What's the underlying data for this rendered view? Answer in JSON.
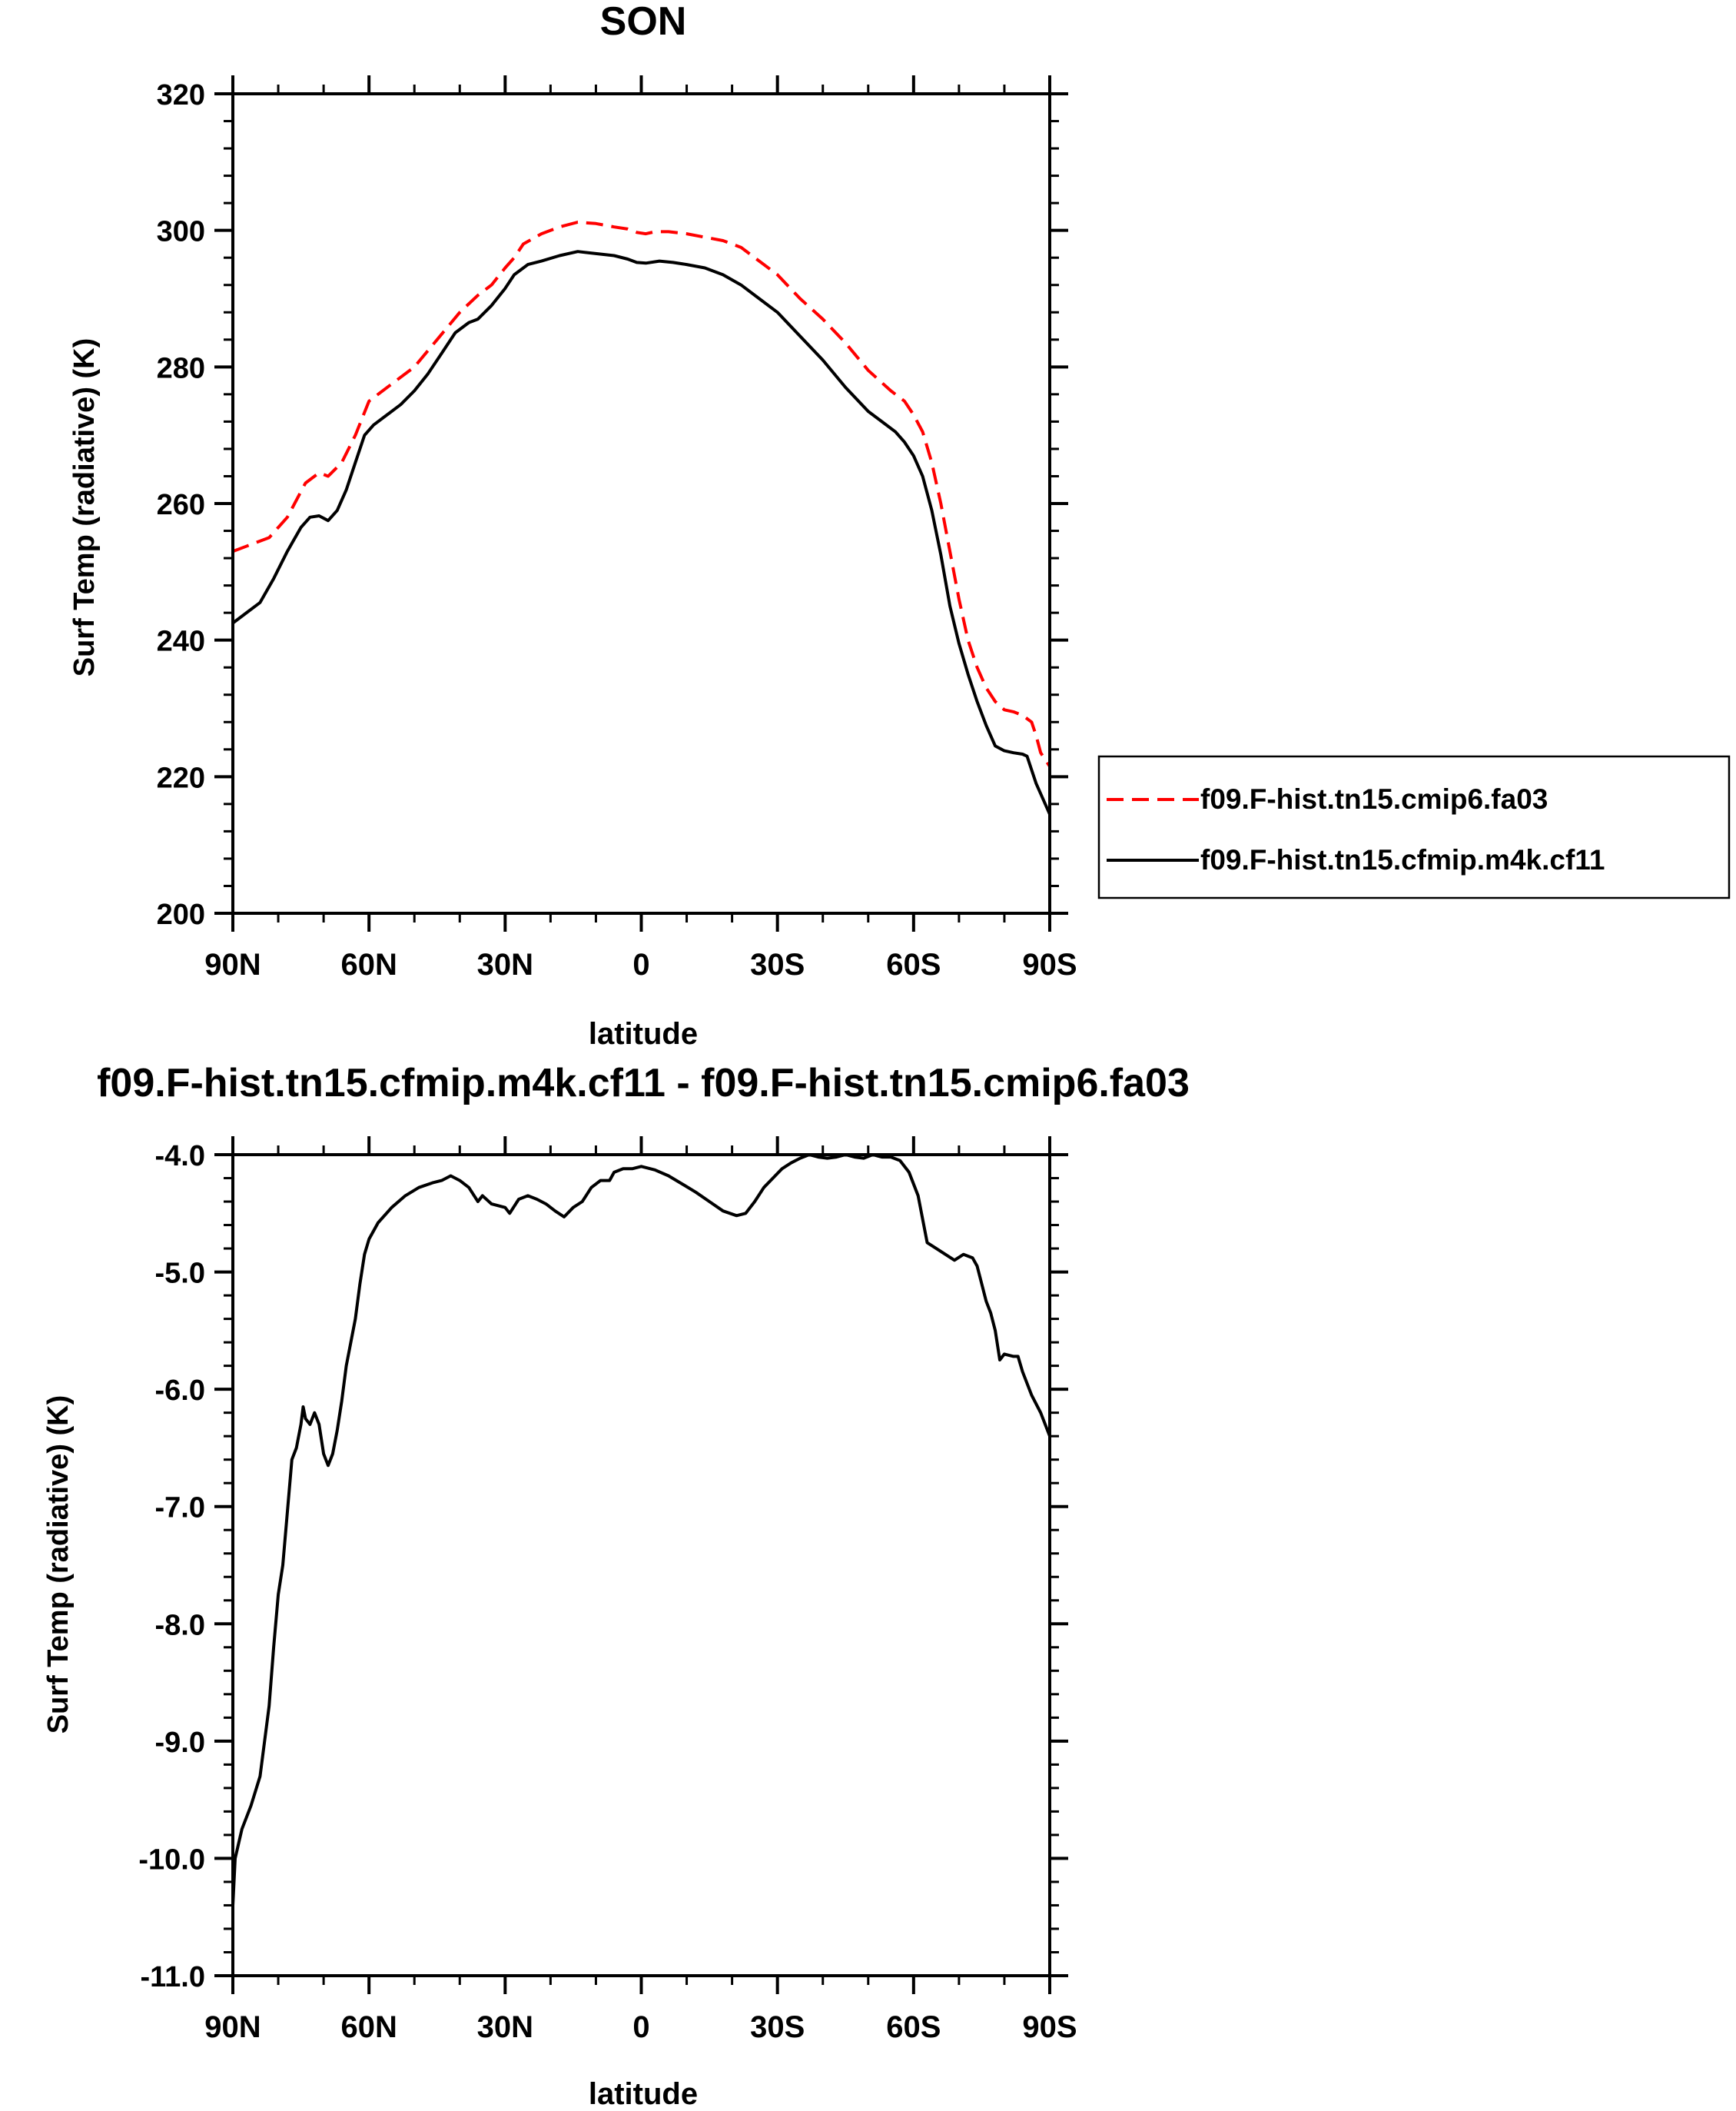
{
  "chart_data": [
    {
      "type": "line",
      "title": "SON",
      "xlabel": "latitude",
      "ylabel": "Surf Temp (radiative) (K)",
      "xlim": [
        90,
        -90
      ],
      "ylim": [
        200,
        320
      ],
      "x_ticks": [
        {
          "value": 90,
          "label": "90N"
        },
        {
          "value": 60,
          "label": "60N"
        },
        {
          "value": 30,
          "label": "30N"
        },
        {
          "value": 0,
          "label": "0"
        },
        {
          "value": -30,
          "label": "30S"
        },
        {
          "value": -60,
          "label": "60S"
        },
        {
          "value": -90,
          "label": "90S"
        }
      ],
      "y_ticks": [
        {
          "value": 200,
          "label": "200"
        },
        {
          "value": 220,
          "label": "220"
        },
        {
          "value": 240,
          "label": "240"
        },
        {
          "value": 260,
          "label": "260"
        },
        {
          "value": 280,
          "label": "280"
        },
        {
          "value": 300,
          "label": "300"
        },
        {
          "value": 320,
          "label": "320"
        }
      ],
      "legend_position": "right",
      "series": [
        {
          "name": "f09.F-hist.tn15.cmip6.fa03",
          "color": "#ff0000",
          "dash": "dashed",
          "points": [
            [
              90,
              253
            ],
            [
              86,
              254
            ],
            [
              82,
              255
            ],
            [
              78,
              258
            ],
            [
              74,
              263
            ],
            [
              71,
              264.5
            ],
            [
              69,
              264
            ],
            [
              66,
              266
            ],
            [
              63,
              270
            ],
            [
              60,
              275
            ],
            [
              55,
              277.5
            ],
            [
              50,
              280
            ],
            [
              45,
              284
            ],
            [
              40,
              288
            ],
            [
              36,
              290.5
            ],
            [
              33,
              292
            ],
            [
              30,
              294.5
            ],
            [
              28,
              296
            ],
            [
              26,
              298
            ],
            [
              22,
              299.5
            ],
            [
              18,
              300.5
            ],
            [
              14,
              301.2
            ],
            [
              10,
              301
            ],
            [
              6,
              300.5
            ],
            [
              3,
              300.2
            ],
            [
              1,
              299.7
            ],
            [
              -1,
              299.5
            ],
            [
              -3,
              299.8
            ],
            [
              -6,
              299.8
            ],
            [
              -10,
              299.5
            ],
            [
              -14,
              299
            ],
            [
              -18,
              298.5
            ],
            [
              -22,
              297.5
            ],
            [
              -26,
              295.5
            ],
            [
              -30,
              293.5
            ],
            [
              -35,
              290
            ],
            [
              -40,
              287
            ],
            [
              -45,
              283.5
            ],
            [
              -50,
              279.5
            ],
            [
              -55,
              276.5
            ],
            [
              -58,
              275
            ],
            [
              -60,
              273
            ],
            [
              -62,
              270.5
            ],
            [
              -64,
              266
            ],
            [
              -66,
              260
            ],
            [
              -68,
              253
            ],
            [
              -70,
              246
            ],
            [
              -72,
              240
            ],
            [
              -74,
              236
            ],
            [
              -76,
              233
            ],
            [
              -78,
              231
            ],
            [
              -80,
              229.8
            ],
            [
              -82,
              229.5
            ],
            [
              -84,
              229
            ],
            [
              -86,
              228
            ],
            [
              -87,
              226
            ],
            [
              -88,
              223.5
            ],
            [
              -90,
              221.5
            ]
          ]
        },
        {
          "name": "f09.F-hist.tn15.cfmip.m4k.cf11",
          "color": "#000000",
          "dash": "solid",
          "points": [
            [
              90,
              242.5
            ],
            [
              87,
              244
            ],
            [
              84,
              245.5
            ],
            [
              81,
              249
            ],
            [
              78,
              253
            ],
            [
              75,
              256.5
            ],
            [
              73,
              258
            ],
            [
              71,
              258.2
            ],
            [
              69,
              257.5
            ],
            [
              67,
              259
            ],
            [
              65,
              262
            ],
            [
              63,
              266
            ],
            [
              61,
              270
            ],
            [
              59,
              271.5
            ],
            [
              56,
              273
            ],
            [
              53,
              274.5
            ],
            [
              50,
              276.5
            ],
            [
              47,
              279
            ],
            [
              44,
              282
            ],
            [
              41,
              285
            ],
            [
              38,
              286.5
            ],
            [
              36,
              287
            ],
            [
              33,
              289
            ],
            [
              30,
              291.5
            ],
            [
              28,
              293.5
            ],
            [
              25,
              295
            ],
            [
              22,
              295.5
            ],
            [
              18,
              296.3
            ],
            [
              14,
              296.9
            ],
            [
              10,
              296.6
            ],
            [
              6,
              296.3
            ],
            [
              3,
              295.8
            ],
            [
              1,
              295.3
            ],
            [
              -1,
              295.2
            ],
            [
              -4,
              295.5
            ],
            [
              -7,
              295.3
            ],
            [
              -10,
              295
            ],
            [
              -14,
              294.5
            ],
            [
              -18,
              293.5
            ],
            [
              -22,
              292
            ],
            [
              -26,
              290
            ],
            [
              -30,
              288
            ],
            [
              -35,
              284.5
            ],
            [
              -40,
              281
            ],
            [
              -45,
              277
            ],
            [
              -50,
              273.5
            ],
            [
              -53,
              272
            ],
            [
              -56,
              270.5
            ],
            [
              -58,
              269
            ],
            [
              -60,
              267
            ],
            [
              -62,
              264
            ],
            [
              -64,
              259
            ],
            [
              -66,
              252.5
            ],
            [
              -68,
              245
            ],
            [
              -70,
              239.5
            ],
            [
              -72,
              235
            ],
            [
              -74,
              231
            ],
            [
              -76,
              227.5
            ],
            [
              -78,
              224.5
            ],
            [
              -80,
              223.8
            ],
            [
              -82,
              223.5
            ],
            [
              -84,
              223.3
            ],
            [
              -85,
              223
            ],
            [
              -86,
              221
            ],
            [
              -87,
              219
            ],
            [
              -88,
              217.5
            ],
            [
              -90,
              214.5
            ]
          ]
        }
      ]
    },
    {
      "type": "line",
      "title": "f09.F-hist.tn15.cfmip.m4k.cf11 - f09.F-hist.tn15.cmip6.fa03",
      "xlabel": "latitude",
      "ylabel": "Surf Temp (radiative) (K)",
      "xlim": [
        90,
        -90
      ],
      "ylim": [
        -11,
        -4
      ],
      "x_ticks": [
        {
          "value": 90,
          "label": "90N"
        },
        {
          "value": 60,
          "label": "60N"
        },
        {
          "value": 30,
          "label": "30N"
        },
        {
          "value": 0,
          "label": "0"
        },
        {
          "value": -30,
          "label": "30S"
        },
        {
          "value": -60,
          "label": "60S"
        },
        {
          "value": -90,
          "label": "90S"
        }
      ],
      "y_ticks": [
        {
          "value": -11,
          "label": "-11.0"
        },
        {
          "value": -10,
          "label": "-10.0"
        },
        {
          "value": -9,
          "label": "-9.0"
        },
        {
          "value": -8,
          "label": "-8.0"
        },
        {
          "value": -7,
          "label": "-7.0"
        },
        {
          "value": -6,
          "label": "-6.0"
        },
        {
          "value": -5,
          "label": "-5.0"
        },
        {
          "value": -4,
          "label": "-4.0"
        }
      ],
      "series": [
        {
          "color": "#000000",
          "dash": "solid",
          "points": [
            [
              90,
              -10.4
            ],
            [
              89.5,
              -10.0
            ],
            [
              88,
              -9.75
            ],
            [
              86,
              -9.55
            ],
            [
              84,
              -9.3
            ],
            [
              82,
              -8.7
            ],
            [
              81,
              -8.2
            ],
            [
              80,
              -7.75
            ],
            [
              79,
              -7.5
            ],
            [
              78,
              -7.05
            ],
            [
              77,
              -6.6
            ],
            [
              76,
              -6.5
            ],
            [
              75,
              -6.3
            ],
            [
              74.5,
              -6.15
            ],
            [
              74,
              -6.25
            ],
            [
              73,
              -6.3
            ],
            [
              72,
              -6.2
            ],
            [
              71,
              -6.3
            ],
            [
              70,
              -6.55
            ],
            [
              69,
              -6.65
            ],
            [
              68,
              -6.55
            ],
            [
              67,
              -6.35
            ],
            [
              66,
              -6.1
            ],
            [
              65,
              -5.8
            ],
            [
              64,
              -5.6
            ],
            [
              63,
              -5.4
            ],
            [
              62,
              -5.1
            ],
            [
              61,
              -4.85
            ],
            [
              60,
              -4.72
            ],
            [
              58,
              -4.58
            ],
            [
              55,
              -4.45
            ],
            [
              52,
              -4.35
            ],
            [
              49,
              -4.28
            ],
            [
              46,
              -4.24
            ],
            [
              44,
              -4.22
            ],
            [
              42,
              -4.18
            ],
            [
              40,
              -4.22
            ],
            [
              38,
              -4.28
            ],
            [
              36,
              -4.4
            ],
            [
              35,
              -4.35
            ],
            [
              33,
              -4.42
            ],
            [
              30,
              -4.45
            ],
            [
              29,
              -4.5
            ],
            [
              27,
              -4.38
            ],
            [
              25,
              -4.35
            ],
            [
              23,
              -4.38
            ],
            [
              21,
              -4.42
            ],
            [
              19,
              -4.48
            ],
            [
              17,
              -4.53
            ],
            [
              15,
              -4.45
            ],
            [
              13,
              -4.4
            ],
            [
              11,
              -4.28
            ],
            [
              9,
              -4.22
            ],
            [
              7,
              -4.22
            ],
            [
              6,
              -4.15
            ],
            [
              4,
              -4.12
            ],
            [
              2,
              -4.12
            ],
            [
              0,
              -4.1
            ],
            [
              -3,
              -4.13
            ],
            [
              -6,
              -4.18
            ],
            [
              -9,
              -4.25
            ],
            [
              -12,
              -4.32
            ],
            [
              -15,
              -4.4
            ],
            [
              -18,
              -4.48
            ],
            [
              -21,
              -4.52
            ],
            [
              -23,
              -4.5
            ],
            [
              -25,
              -4.4
            ],
            [
              -27,
              -4.28
            ],
            [
              -29,
              -4.2
            ],
            [
              -31,
              -4.12
            ],
            [
              -33,
              -4.07
            ],
            [
              -35,
              -4.03
            ],
            [
              -37,
              -4.0
            ],
            [
              -39,
              -4.02
            ],
            [
              -41,
              -4.03
            ],
            [
              -43,
              -4.02
            ],
            [
              -45,
              -4.0
            ],
            [
              -47,
              -4.02
            ],
            [
              -49,
              -4.03
            ],
            [
              -51,
              -4.0
            ],
            [
              -53,
              -4.02
            ],
            [
              -55,
              -4.02
            ],
            [
              -57,
              -4.05
            ],
            [
              -59,
              -4.15
            ],
            [
              -61,
              -4.35
            ],
            [
              -62,
              -4.55
            ],
            [
              -63,
              -4.75
            ],
            [
              -65,
              -4.8
            ],
            [
              -67,
              -4.85
            ],
            [
              -69,
              -4.9
            ],
            [
              -71,
              -4.85
            ],
            [
              -73,
              -4.88
            ],
            [
              -74,
              -4.95
            ],
            [
              -75,
              -5.1
            ],
            [
              -76,
              -5.25
            ],
            [
              -77,
              -5.35
            ],
            [
              -78,
              -5.5
            ],
            [
              -79,
              -5.75
            ],
            [
              -80,
              -5.7
            ],
            [
              -82,
              -5.72
            ],
            [
              -83,
              -5.72
            ],
            [
              -84,
              -5.85
            ],
            [
              -86,
              -6.05
            ],
            [
              -88,
              -6.2
            ],
            [
              -90,
              -6.4
            ]
          ]
        }
      ]
    }
  ]
}
